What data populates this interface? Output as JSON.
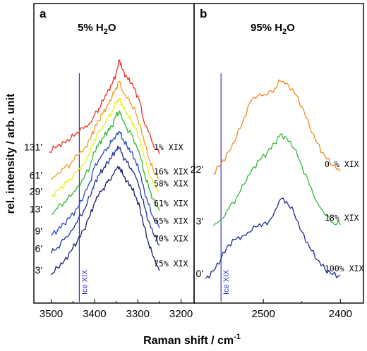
{
  "chart_data": {
    "type": "line",
    "xlabel": "Raman shift / cm",
    "xlabel_superscript": "-1",
    "ylabel": "rel. intensity / arb. unit",
    "panels": [
      {
        "letter": "a",
        "title_prefix": "5% H",
        "title_sub": "2",
        "title_suffix": "O",
        "xlim": [
          3540,
          3170
        ],
        "xticks": [
          3500,
          3400,
          3300,
          3200
        ],
        "reference_line": {
          "x": 3435,
          "label": "Ice XIX",
          "color": "#3535d0"
        },
        "series": [
          {
            "time": "131'",
            "label": "1% XIX",
            "color": "#e8321e",
            "x": [
              3505,
              3485,
              3470,
              3455,
              3440,
              3425,
              3410,
              3400,
              3390,
              3380,
              3370,
              3360,
              3350,
              3342,
              3335,
              3325,
              3315,
              3305,
              3295,
              3285,
              3275,
              3265,
              3250
            ],
            "y": [
              0.88,
              0.98,
              1.05,
              1.1,
              1.22,
              1.28,
              1.38,
              1.5,
              1.62,
              1.75,
              1.92,
              2.02,
              2.22,
              2.45,
              2.28,
              2.15,
              2.05,
              1.92,
              1.72,
              1.38,
              1.22,
              1.02,
              0.84
            ]
          },
          {
            "time": "61'",
            "label": "16% XIX",
            "color": "#f39a1e",
            "x": [
              3500,
              3485,
              3470,
              3455,
              3440,
              3425,
              3410,
              3400,
              3390,
              3380,
              3370,
              3360,
              3350,
              3342,
              3335,
              3325,
              3315,
              3305,
              3295,
              3285,
              3275,
              3265,
              3250
            ],
            "y": [
              0.4,
              0.52,
              0.6,
              0.68,
              0.82,
              0.92,
              1.1,
              1.28,
              1.42,
              1.55,
              1.68,
              1.8,
              1.98,
              2.08,
              1.92,
              1.8,
              1.7,
              1.55,
              1.35,
              1.05,
              0.78,
              0.58,
              0.42
            ]
          },
          {
            "time": "29'",
            "label": "58% XIX",
            "color": "#e8ee20",
            "x": [
              3500,
              3485,
              3470,
              3455,
              3440,
              3425,
              3410,
              3400,
              3390,
              3380,
              3370,
              3360,
              3350,
              3342,
              3335,
              3325,
              3315,
              3305,
              3295,
              3285,
              3275,
              3265,
              3250
            ],
            "y": [
              0.12,
              0.22,
              0.32,
              0.42,
              0.55,
              0.68,
              0.88,
              1.08,
              1.22,
              1.32,
              1.45,
              1.55,
              1.72,
              1.8,
              1.65,
              1.52,
              1.42,
              1.28,
              1.08,
              0.8,
              0.55,
              0.35,
              0.22
            ]
          },
          {
            "time": "13'",
            "label": "61% XIX",
            "color": "#2cb82c",
            "x": [
              3500,
              3485,
              3470,
              3455,
              3440,
              3425,
              3410,
              3400,
              3390,
              3380,
              3370,
              3360,
              3350,
              3342,
              3335,
              3325,
              3315,
              3305,
              3295,
              3285,
              3275,
              3265,
              3250
            ],
            "y": [
              -0.18,
              -0.08,
              0.02,
              0.12,
              0.28,
              0.42,
              0.65,
              0.88,
              1.02,
              1.12,
              1.22,
              1.32,
              1.5,
              1.58,
              1.42,
              1.28,
              1.18,
              1.02,
              0.82,
              0.52,
              0.28,
              0.08,
              -0.12
            ]
          },
          {
            "time": "9'",
            "label": "65% XIX",
            "color": "#2448c8",
            "x": [
              3500,
              3485,
              3470,
              3455,
              3440,
              3425,
              3410,
              3400,
              3390,
              3380,
              3370,
              3360,
              3350,
              3342,
              3335,
              3325,
              3315,
              3305,
              3295,
              3285,
              3275,
              3265,
              3250
            ],
            "y": [
              -0.55,
              -0.45,
              -0.35,
              -0.22,
              -0.08,
              0.12,
              0.38,
              0.62,
              0.75,
              0.85,
              0.95,
              1.05,
              1.18,
              1.22,
              1.1,
              0.98,
              0.88,
              0.72,
              0.52,
              0.22,
              -0.02,
              -0.22,
              -0.42
            ]
          },
          {
            "time": "6'",
            "label": "70% XIX",
            "color": "#1c2c9c",
            "x": [
              3500,
              3485,
              3470,
              3455,
              3440,
              3425,
              3410,
              3400,
              3390,
              3380,
              3370,
              3360,
              3350,
              3342,
              3335,
              3325,
              3315,
              3305,
              3295,
              3285,
              3275,
              3265,
              3250
            ],
            "y": [
              -0.85,
              -0.75,
              -0.62,
              -0.48,
              -0.32,
              -0.12,
              0.12,
              0.35,
              0.48,
              0.58,
              0.7,
              0.8,
              0.92,
              0.95,
              0.82,
              0.7,
              0.6,
              0.45,
              0.25,
              -0.05,
              -0.3,
              -0.5,
              -0.72
            ]
          },
          {
            "time": "3'",
            "label": "75% XIX",
            "color": "#141e6e",
            "x": [
              3500,
              3485,
              3470,
              3455,
              3440,
              3425,
              3410,
              3400,
              3390,
              3380,
              3370,
              3360,
              3350,
              3342,
              3335,
              3325,
              3315,
              3305,
              3295,
              3285,
              3275,
              3265,
              3250
            ],
            "y": [
              -1.22,
              -1.1,
              -0.98,
              -0.82,
              -0.65,
              -0.45,
              -0.2,
              0.02,
              0.15,
              0.25,
              0.36,
              0.46,
              0.58,
              0.62,
              0.5,
              0.38,
              0.28,
              0.12,
              -0.08,
              -0.4,
              -0.68,
              -0.9,
              -1.15
            ]
          }
        ]
      },
      {
        "letter": "b",
        "title_prefix": "95% H",
        "title_sub": "2",
        "title_suffix": "O",
        "xlim": [
          2590,
          2370
        ],
        "xticks": [
          2500,
          2400
        ],
        "reference_line": {
          "x": 2555,
          "label": "Ice XIX",
          "color": "#3535d0"
        },
        "series": [
          {
            "time": "22'",
            "label": "0 % XIX",
            "color": "#f08a20",
            "x": [
              2565,
              2555,
              2545,
              2535,
              2525,
              2515,
              2505,
              2495,
              2485,
              2478,
              2470,
              2460,
              2450,
              2440,
              2430,
              2420,
              2410,
              2400
            ],
            "y": [
              0.3,
              0.48,
              0.7,
              0.95,
              1.3,
              1.62,
              1.72,
              1.7,
              1.82,
              1.95,
              1.92,
              1.75,
              1.5,
              1.15,
              0.85,
              0.62,
              0.45,
              0.35
            ]
          },
          {
            "time": "3'",
            "label": "18% XIX",
            "color": "#32b832",
            "x": [
              2565,
              2555,
              2545,
              2535,
              2525,
              2515,
              2505,
              2495,
              2485,
              2478,
              2470,
              2460,
              2450,
              2440,
              2430,
              2420,
              2410,
              2400
            ],
            "y": [
              -0.62,
              -0.5,
              -0.32,
              -0.12,
              0.12,
              0.38,
              0.55,
              0.68,
              0.85,
              1.0,
              0.95,
              0.75,
              0.45,
              0.1,
              -0.2,
              -0.42,
              -0.55,
              -0.6
            ]
          },
          {
            "time": "0'",
            "label": "100% XIX",
            "color": "#1a2a90",
            "x": [
              2575,
              2565,
              2555,
              2545,
              2535,
              2525,
              2515,
              2505,
              2495,
              2485,
              2478,
              2470,
              2460,
              2450,
              2440,
              2430,
              2420,
              2410,
              2400
            ],
            "y": [
              -1.55,
              -1.42,
              -1.2,
              -0.95,
              -0.85,
              -0.78,
              -0.7,
              -0.58,
              -0.6,
              -0.35,
              -0.15,
              -0.18,
              -0.4,
              -0.72,
              -1.0,
              -1.22,
              -1.38,
              -1.48,
              -1.5
            ]
          }
        ]
      }
    ]
  }
}
